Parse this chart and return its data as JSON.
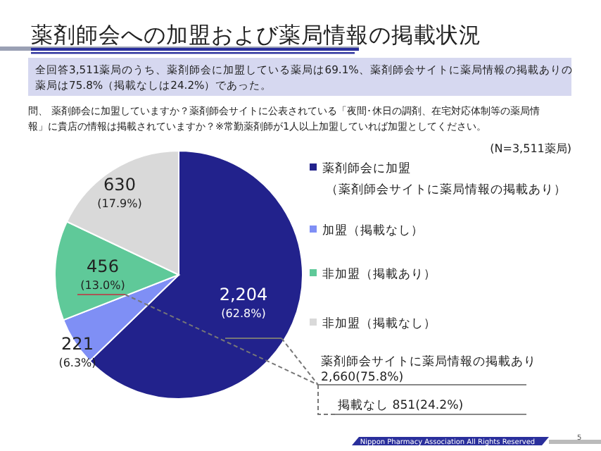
{
  "chart_data": {
    "type": "pie",
    "title": "薬剤師会への加盟および薬局情報の掲載状況",
    "subtitle": "全回答3,511薬局のうち、薬剤師会に加盟している薬局は69.1%、薬剤師会サイトに薬局情報の掲載ありの薬局は75.8%（掲載なしは24.2%）であった。",
    "categories": [
      "薬剤師会に加盟（薬剤師会サイトに薬局情報の掲載あり）",
      "加盟（掲載なし）",
      "非加盟（掲載あり）",
      "非加盟（掲載なし）"
    ],
    "values": [
      2204,
      221,
      456,
      630
    ],
    "colors": [
      "#22228c",
      "#7f8ff5",
      "#5fc999",
      "#d9d9d9"
    ],
    "value_labels": [
      "2,204\n(62.8%)",
      "221\n(6.3%)",
      "456\n(13.0%)",
      "630\n(17.9%)"
    ],
    "legend": "right",
    "annotations": [
      "問、 薬剤師会に加盟していますか？薬剤師会サイトに公表されている「夜間･休日の調剤、在宅対応体制等の薬局情報」に貴店の情報は掲載されていますか？※常勤薬剤師が1人以上加盟していれば加盟としてください。",
      "(N=3,511薬局)",
      "薬剤師会サイトに薬局情報の掲載あり\n2,660(75.8%)",
      "掲載なし 851(24.2%)",
      "Nippon Pharmacy Association All Rights Reserved",
      "5"
    ]
  }
}
